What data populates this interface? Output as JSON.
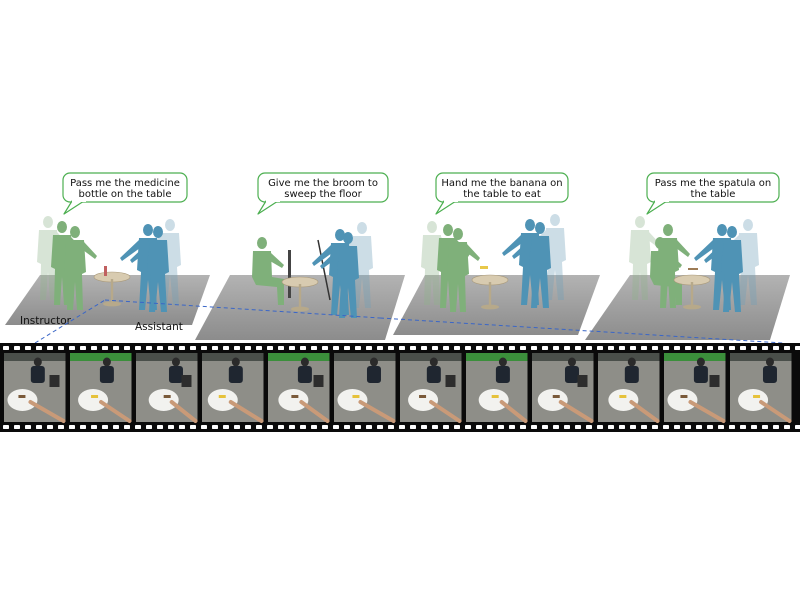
{
  "figure": {
    "speech_bubbles": [
      {
        "line1": "Pass me the medicine",
        "line2": "bottle on the table"
      },
      {
        "line1": "Give me the broom to",
        "line2": "sweep the floor"
      },
      {
        "line1": "Hand me the banana on",
        "line2": "the table to eat"
      },
      {
        "line1": "Pass me the spatula on",
        "line2": "the table"
      }
    ],
    "labels": {
      "instructor": "Instructor",
      "assistant": "Assistant"
    },
    "colors": {
      "instructor": "#7fb07a",
      "assistant": "#4f93b5",
      "platform": "#9a9a9a",
      "bubble_border": "#4caf50",
      "connector": "#3a66c7",
      "film": "#0a0a0a"
    },
    "film_frames": [
      {
        "scene": "topdown-table-bottle"
      },
      {
        "scene": "person-table-banana"
      },
      {
        "scene": "table-arm-reach"
      },
      {
        "scene": "table-seated-person"
      },
      {
        "scene": "person-at-table"
      },
      {
        "scene": "seated-person-chair"
      },
      {
        "scene": "arm-floor"
      },
      {
        "scene": "standing-person-banana"
      },
      {
        "scene": "table-banana-arm"
      },
      {
        "scene": "person-chairs"
      },
      {
        "scene": "white-table-topdown"
      },
      {
        "scene": "person-arm-spatula"
      }
    ]
  }
}
